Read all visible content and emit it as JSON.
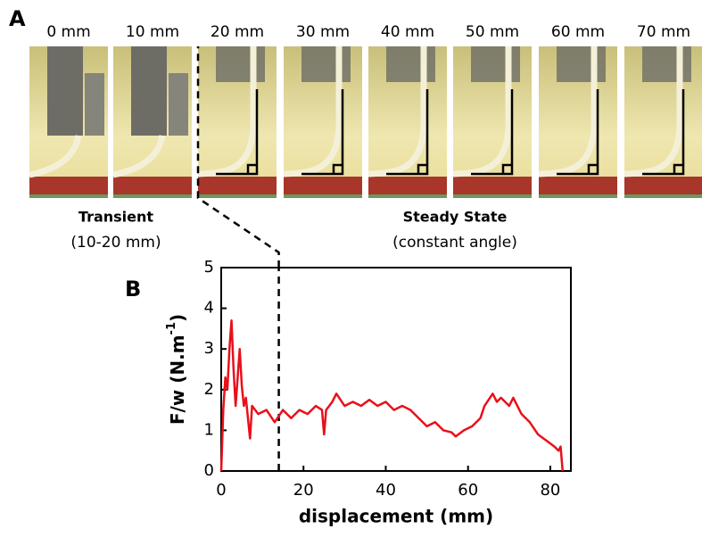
{
  "panel_labels": [
    "A",
    "B"
  ],
  "photos": {
    "labels": [
      "0 mm",
      "10 mm",
      "20 mm",
      "30 mm",
      "40 mm",
      "50 mm",
      "60 mm",
      "70 mm"
    ],
    "transient": [
      "Transient",
      "(10-20 mm)"
    ],
    "steady": [
      "Steady State",
      "(constant angle)"
    ]
  },
  "chart_data": {
    "type": "line",
    "x_label": "displacement (mm)",
    "y_label": [
      "F/w (N.m",
      "-1",
      ")"
    ],
    "xlim": [
      0,
      85
    ],
    "ylim": [
      0,
      5
    ],
    "xticks": [
      0,
      20,
      40,
      60,
      80
    ],
    "yticks": [
      0,
      1,
      2,
      3,
      4,
      5
    ],
    "vline": 14,
    "x": [
      0,
      0.5,
      1,
      1.5,
      2,
      2.5,
      3,
      3.5,
      4,
      4.5,
      5,
      5.5,
      6,
      6.5,
      7,
      7.5,
      9,
      11,
      13,
      15,
      17,
      19,
      21,
      23,
      24.5,
      25,
      25.5,
      27,
      28,
      30,
      32,
      34,
      36,
      38,
      40,
      42,
      44,
      46,
      48,
      50,
      52,
      54,
      56,
      57,
      59,
      61,
      63,
      64,
      66,
      67,
      68,
      70,
      71,
      73,
      75,
      77,
      79,
      81,
      82,
      82.5,
      83
    ],
    "series": [
      {
        "color": "#e8101a",
        "values": [
          0,
          1.5,
          2.3,
          2.0,
          3.0,
          3.7,
          2.5,
          1.6,
          2.3,
          3.0,
          2.1,
          1.6,
          1.8,
          1.3,
          0.8,
          1.6,
          1.4,
          1.5,
          1.2,
          1.5,
          1.3,
          1.5,
          1.4,
          1.6,
          1.5,
          0.9,
          1.5,
          1.7,
          1.9,
          1.6,
          1.7,
          1.6,
          1.75,
          1.6,
          1.7,
          1.5,
          1.6,
          1.5,
          1.3,
          1.1,
          1.2,
          1.0,
          0.95,
          0.85,
          1.0,
          1.1,
          1.3,
          1.6,
          1.9,
          1.7,
          1.8,
          1.6,
          1.8,
          1.4,
          1.2,
          0.9,
          0.75,
          0.6,
          0.5,
          0.6,
          0
        ]
      }
    ]
  }
}
